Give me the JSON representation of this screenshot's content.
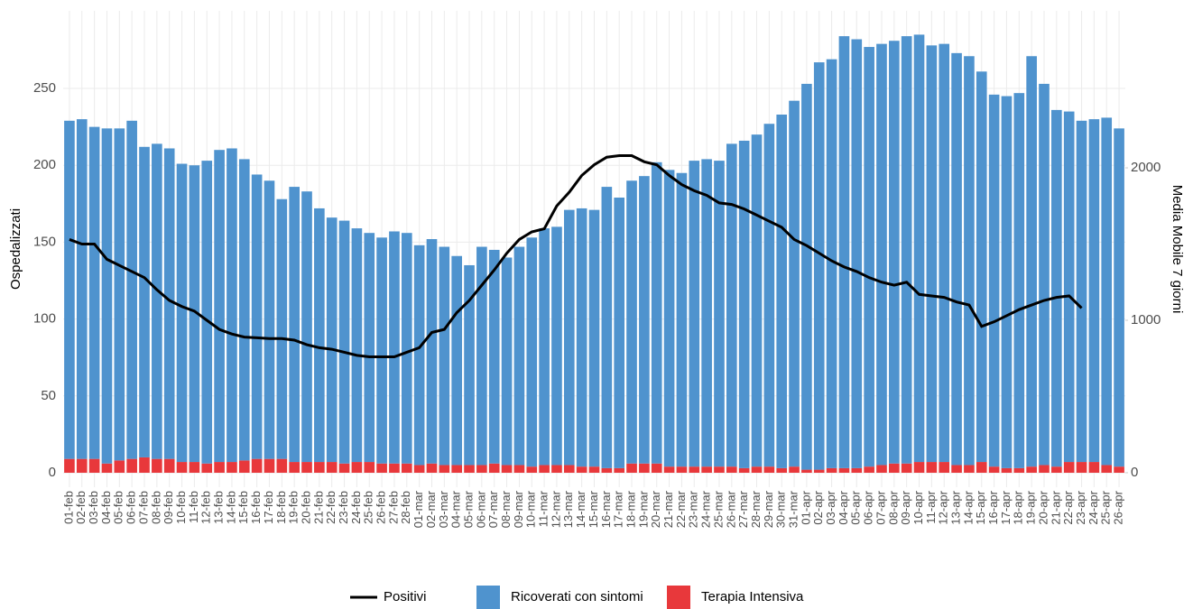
{
  "chart_data": {
    "type": "bar",
    "y_label": "Ospedalizzati",
    "y2_label": "Media Mobile 7 giorni",
    "categories": [
      "01-feb",
      "02-feb",
      "03-feb",
      "04-feb",
      "05-feb",
      "06-feb",
      "07-feb",
      "08-feb",
      "09-feb",
      "10-feb",
      "11-feb",
      "12-feb",
      "13-feb",
      "14-feb",
      "15-feb",
      "16-feb",
      "17-feb",
      "18-feb",
      "19-feb",
      "20-feb",
      "21-feb",
      "22-feb",
      "23-feb",
      "24-feb",
      "25-feb",
      "26-feb",
      "27-feb",
      "28-feb",
      "01-mar",
      "02-mar",
      "03-mar",
      "04-mar",
      "05-mar",
      "06-mar",
      "07-mar",
      "08-mar",
      "09-mar",
      "10-mar",
      "11-mar",
      "12-mar",
      "13-mar",
      "14-mar",
      "15-mar",
      "16-mar",
      "17-mar",
      "18-mar",
      "19-mar",
      "20-mar",
      "21-mar",
      "22-mar",
      "23-mar",
      "24-mar",
      "25-mar",
      "26-mar",
      "27-mar",
      "28-mar",
      "29-mar",
      "30-mar",
      "31-mar",
      "01-apr",
      "02-apr",
      "03-apr",
      "04-apr",
      "05-apr",
      "06-apr",
      "07-apr",
      "08-apr",
      "09-apr",
      "10-apr",
      "11-apr",
      "12-apr",
      "13-apr",
      "14-apr",
      "15-apr",
      "16-apr",
      "17-apr",
      "18-apr",
      "19-apr",
      "20-apr",
      "21-apr",
      "22-apr",
      "23-apr",
      "24-apr",
      "25-apr",
      "26-apr"
    ],
    "series": [
      {
        "name": "Positivi",
        "type": "line",
        "axis": "y2",
        "color": "#000000",
        "values": [
          1530,
          1500,
          1500,
          1400,
          1360,
          1320,
          1280,
          1200,
          1130,
          1090,
          1060,
          1000,
          940,
          910,
          890,
          885,
          880,
          880,
          870,
          840,
          820,
          810,
          790,
          770,
          760,
          760,
          760,
          790,
          820,
          920,
          940,
          1050,
          1130,
          1230,
          1330,
          1440,
          1530,
          1580,
          1600,
          1750,
          1840,
          1950,
          2020,
          2070,
          2080,
          2080,
          2040,
          2020,
          1950,
          1890,
          1850,
          1820,
          1770,
          1760,
          1730,
          1690,
          1650,
          1610,
          1530,
          1490,
          1440,
          1390,
          1350,
          1320,
          1280,
          1250,
          1230,
          1250,
          1170,
          1160,
          1150,
          1120,
          1100,
          960,
          990,
          1030,
          1070,
          1100,
          1130,
          1150,
          1160,
          1080,
          null,
          null,
          null
        ]
      },
      {
        "name": "Ricoverati con sintomi",
        "type": "bar",
        "color": "#4f93ce",
        "values": [
          220,
          221,
          216,
          218,
          216,
          220,
          202,
          205,
          202,
          194,
          193,
          197,
          203,
          204,
          196,
          185,
          181,
          169,
          179,
          176,
          165,
          159,
          158,
          152,
          149,
          147,
          151,
          150,
          143,
          146,
          142,
          136,
          130,
          142,
          139,
          135,
          142,
          149,
          154,
          155,
          166,
          168,
          167,
          183,
          176,
          184,
          187,
          196,
          193,
          191,
          199,
          200,
          199,
          210,
          213,
          216,
          223,
          230,
          238,
          251,
          265,
          266,
          281,
          279,
          273,
          274,
          275,
          278,
          278,
          271,
          272,
          268,
          266,
          254,
          242,
          242,
          244,
          267,
          248,
          232,
          228,
          222,
          223,
          226,
          220
        ]
      },
      {
        "name": "Terapia Intensiva",
        "type": "bar",
        "color": "#e8383b",
        "values": [
          9,
          9,
          9,
          6,
          8,
          9,
          10,
          9,
          9,
          7,
          7,
          6,
          7,
          7,
          8,
          9,
          9,
          9,
          7,
          7,
          7,
          7,
          6,
          7,
          7,
          6,
          6,
          6,
          5,
          6,
          5,
          5,
          5,
          5,
          6,
          5,
          5,
          4,
          5,
          5,
          5,
          4,
          4,
          3,
          3,
          6,
          6,
          6,
          4,
          4,
          4,
          4,
          4,
          4,
          3,
          4,
          4,
          3,
          4,
          2,
          2,
          3,
          3,
          3,
          4,
          5,
          6,
          6,
          7,
          7,
          7,
          5,
          5,
          7,
          4,
          3,
          3,
          4,
          5,
          4,
          7,
          7,
          7,
          5,
          4
        ]
      }
    ],
    "ylim": [
      -9.4,
      300.5
    ],
    "yticks": [
      0,
      50,
      100,
      150,
      200,
      250
    ],
    "y2lim": [
      -95,
      3030
    ],
    "y2ticks": [
      0,
      1000,
      2000
    ],
    "grid": true,
    "legend": "bottom"
  }
}
